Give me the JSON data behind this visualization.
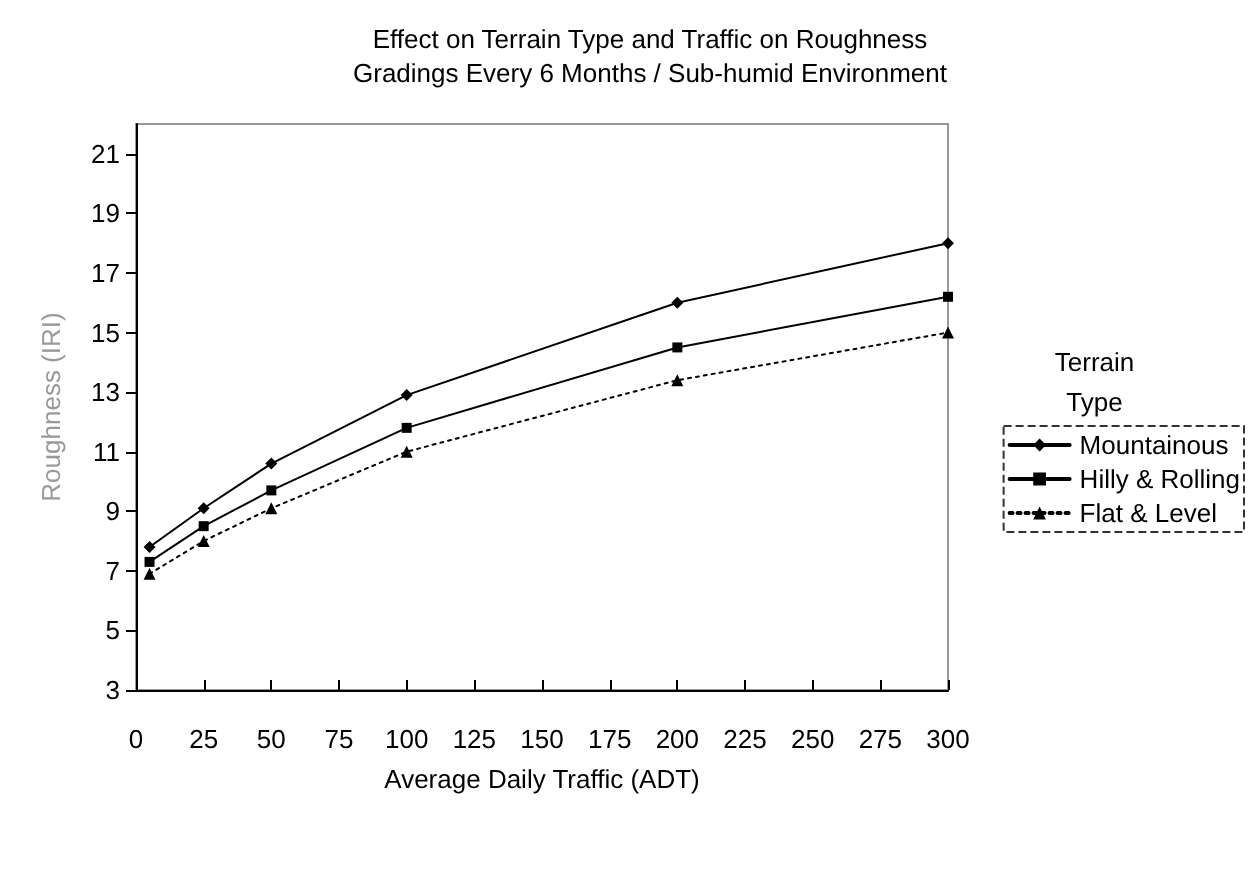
{
  "chart_data": {
    "type": "line",
    "title": "Effect on Terrain Type and Traffic on Roughness",
    "subtitle": "Gradings Every 6 Months / Sub-humid Environment",
    "xlabel": "Average Daily Traffic (ADT)",
    "ylabel": "Roughness (IRI)",
    "legend_title": "Terrain\nType",
    "x": [
      5,
      25,
      50,
      100,
      200,
      300
    ],
    "series": [
      {
        "name": "Mountainous",
        "color": "#000000",
        "marker": "diamond",
        "line_style": "solid",
        "values": [
          7.8,
          9.1,
          10.6,
          12.9,
          16.0,
          18.0
        ]
      },
      {
        "name": "Hilly & Rolling",
        "color": "#000000",
        "marker": "square",
        "line_style": "solid",
        "values": [
          7.3,
          8.5,
          9.7,
          11.8,
          14.5,
          16.2
        ]
      },
      {
        "name": "Flat & Level",
        "color": "#000000",
        "marker": "triangle",
        "line_style": "dotted",
        "values": [
          6.9,
          8.0,
          9.1,
          11.0,
          13.4,
          15.0
        ]
      }
    ],
    "xlim": [
      0,
      300
    ],
    "xticks": [
      0,
      25,
      50,
      75,
      100,
      125,
      150,
      175,
      200,
      225,
      250,
      275,
      300
    ],
    "ylim": [
      3,
      22
    ],
    "yticks": [
      3,
      5,
      7,
      9,
      11,
      13,
      15,
      17,
      19,
      21
    ],
    "grid": false,
    "legend": "right"
  }
}
